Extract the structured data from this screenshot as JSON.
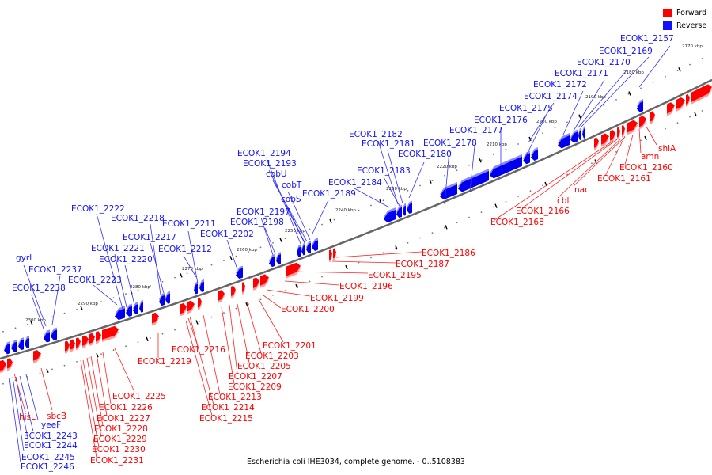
{
  "legend": {
    "forward_label": "Forward",
    "reverse_label": "Reverse",
    "forward_color": "#ff0000",
    "reverse_color": "#1010ff"
  },
  "title": "Escherichia coli IHE3034, complete genome. - 0..5108383",
  "axis_ticks": [
    "2170 kbp",
    "2180 kbp",
    "2190 kbp",
    "2200 kbp",
    "2210 kbp",
    "2220 kbp",
    "2230 kbp",
    "2240 kbp",
    "2250 kbp",
    "2260 kbp",
    "2270 kbp",
    "2280 kbp",
    "2290 kbp",
    "2300 kbp"
  ],
  "reverse_genes": [
    "ECOK1_2157",
    "ECOK1_2169",
    "ECOK1_2170",
    "ECOK1_2171",
    "ECOK1_2172",
    "ECOK1_2174",
    "ECOK1_2175",
    "ECOK1_2176",
    "ECOK1_2177",
    "ECOK1_2178",
    "ECOK1_2180",
    "ECOK1_2181",
    "ECOK1_2182",
    "ECOK1_2183",
    "ECOK1_2184",
    "ECOK1_2189",
    "ECOK1_2194",
    "ECOK1_2193",
    "cobU",
    "cobT",
    "cobS",
    "ECOK1_2197",
    "ECOK1_2198",
    "ECOK1_2202",
    "ECOK1_2211",
    "ECOK1_2212",
    "ECOK1_2217",
    "ECOK1_2218",
    "ECOK1_2221",
    "ECOK1_2220",
    "ECOK1_2222",
    "ECOK1_2223",
    "gyrl",
    "ECOK1_2237",
    "ECOK1_2238",
    "yeeF",
    "ECOK1_2243",
    "ECOK1_2244",
    "ECOK1_2245",
    "ECOK1_2246"
  ],
  "forward_genes": [
    "shiA",
    "amn",
    "ECOK1_2160",
    "ECOK1_2161",
    "nac",
    "cbl",
    "ECOK1_2166",
    "ECOK1_2168",
    "ECOK1_2186",
    "ECOK1_2187",
    "ECOK1_2195",
    "ECOK1_2196",
    "ECOK1_2199",
    "ECOK1_2200",
    "ECOK1_2201",
    "ECOK1_2203",
    "ECOK1_2205",
    "ECOK1_2207",
    "ECOK1_2209",
    "ECOK1_2213",
    "ECOK1_2214",
    "ECOK1_2215",
    "ECOK1_2216",
    "ECOK1_2219",
    "ECOK1_2225",
    "ECOK1_2226",
    "ECOK1_2227",
    "ECOK1_2228",
    "ECOK1_2229",
    "ECOK1_2230",
    "ECOK1_2231",
    "hisL",
    "sbcB"
  ]
}
